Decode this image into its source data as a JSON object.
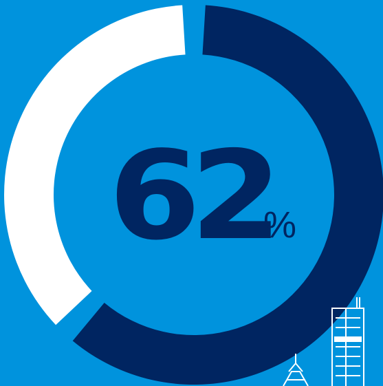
{
  "chart_data": {
    "type": "pie",
    "style": "donut",
    "value": 62,
    "unit": "%",
    "slices": [
      {
        "value": 62,
        "color": "#002561"
      },
      {
        "value": 38,
        "color": "#ffffff"
      }
    ],
    "center_value": "62",
    "center_unit": "%"
  },
  "colors": {
    "background": "#0093dd",
    "accent": "#002561",
    "remainder": "#ffffff"
  },
  "decoration": {
    "icon": "city-skyline-icon"
  }
}
